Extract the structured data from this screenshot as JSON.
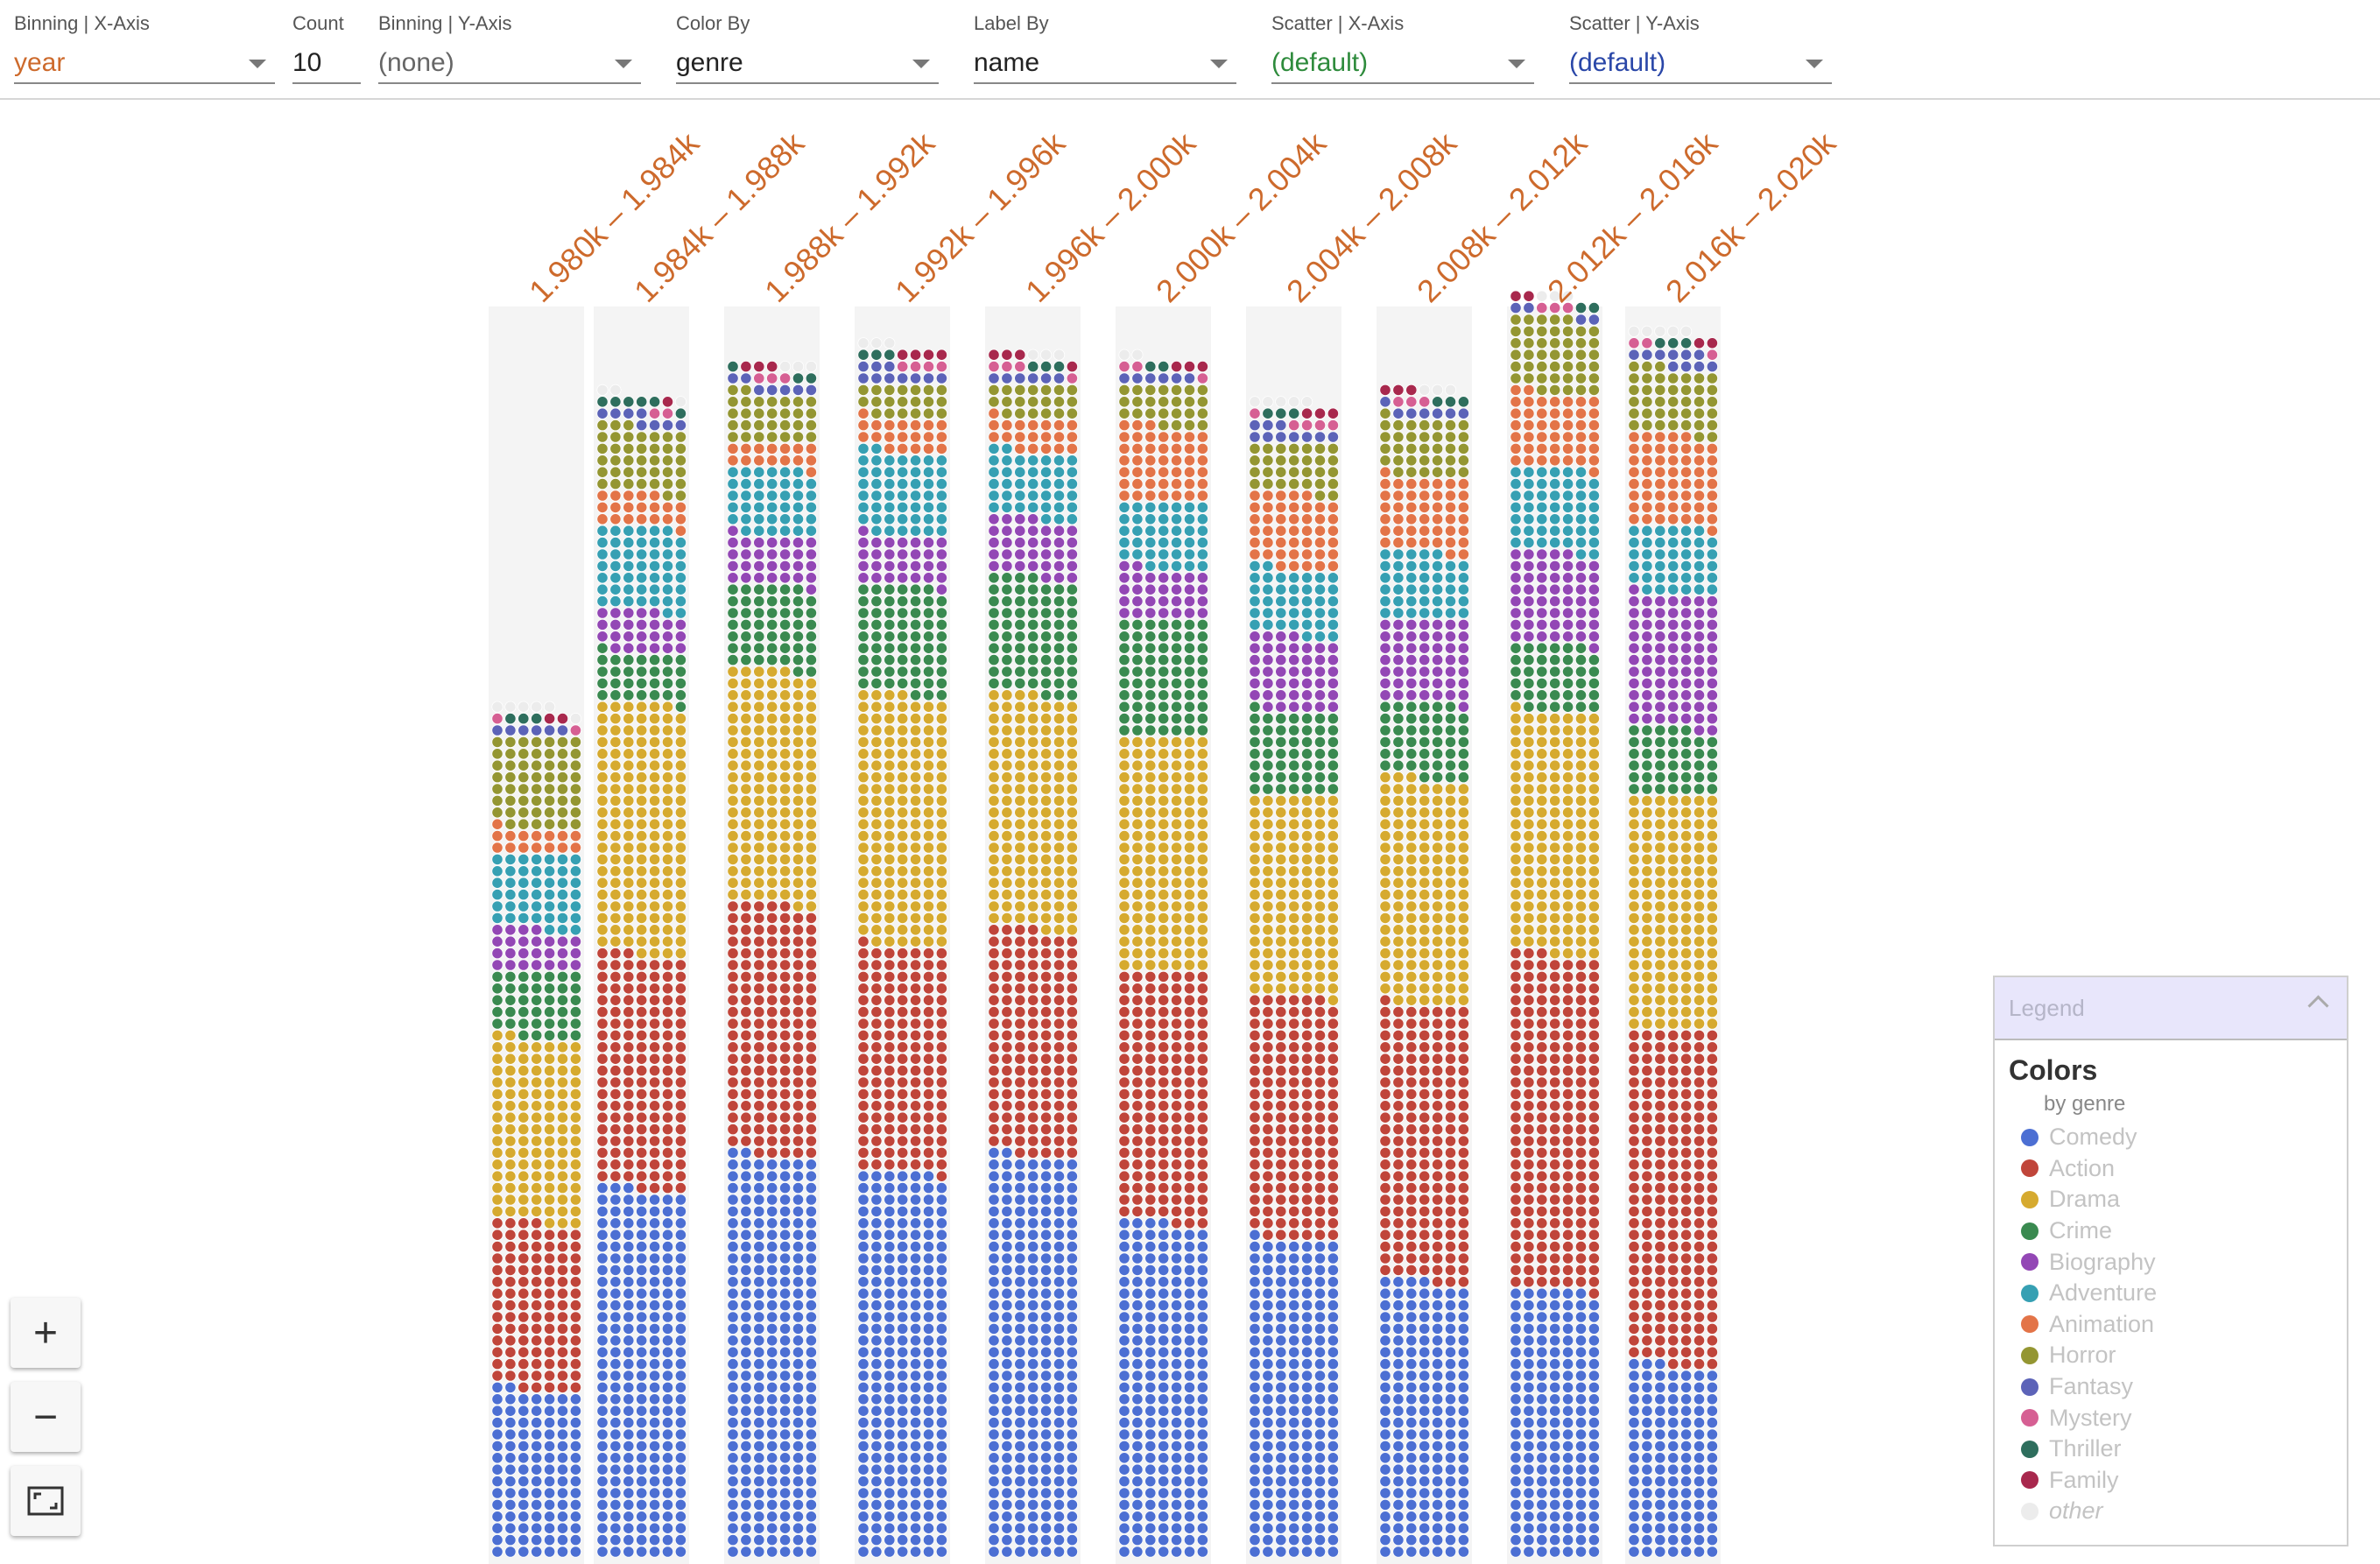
{
  "controls": [
    {
      "label": "Binning | X-Axis",
      "value": "year",
      "color": "#cd6a2c",
      "dropdown": true
    },
    {
      "label": "Count",
      "value": "10",
      "color": "#222222",
      "dropdown": false
    },
    {
      "label": "Binning | Y-Axis",
      "value": "(none)",
      "color": "#666666",
      "dropdown": true
    },
    {
      "label": "Color By",
      "value": "genre",
      "color": "#222222",
      "dropdown": true
    },
    {
      "label": "Label By",
      "value": "name",
      "color": "#222222",
      "dropdown": true
    },
    {
      "label": "Scatter | X-Axis",
      "value": "(default)",
      "color": "#2e8b3c",
      "dropdown": true
    },
    {
      "label": "Scatter | Y-Axis",
      "value": "(default)",
      "color": "#2a47a8",
      "dropdown": true
    }
  ],
  "zoom": {
    "in_label": "+",
    "out_label": "−"
  },
  "legend": {
    "header": "Legend",
    "title": "Colors",
    "subtitle": "by genre",
    "items": [
      {
        "label": "Comedy",
        "color": "#4c6fd3"
      },
      {
        "label": "Action",
        "color": "#c0453a"
      },
      {
        "label": "Drama",
        "color": "#d6aa2f"
      },
      {
        "label": "Crime",
        "color": "#3a8a50"
      },
      {
        "label": "Biography",
        "color": "#9347b5"
      },
      {
        "label": "Adventure",
        "color": "#36a0b3"
      },
      {
        "label": "Animation",
        "color": "#e37448"
      },
      {
        "label": "Horror",
        "color": "#949632"
      },
      {
        "label": "Fantasy",
        "color": "#5c63b8"
      },
      {
        "label": "Mystery",
        "color": "#d65f93"
      },
      {
        "label": "Thriller",
        "color": "#2e6e5d"
      },
      {
        "label": "Family",
        "color": "#a8284d"
      },
      {
        "label": "other",
        "color": "#ececec",
        "italic": true
      }
    ]
  },
  "chart_data": {
    "type": "bar",
    "grouping": "stacked unit dots, one dot per movie, colored by genre",
    "x_binning": "year",
    "categories": [
      "1.980k – 1.984k",
      "1.984k – 1.988k",
      "1.988k – 1.992k",
      "1.992k – 1.996k",
      "1.996k – 2.000k",
      "2.000k – 2.004k",
      "2.004k – 2.008k",
      "2.008k – 2.012k",
      "2.012k – 2.016k",
      "2.016k – 2.020k"
    ],
    "series": [
      {
        "name": "Comedy",
        "values": [
          100,
          220,
          240,
          230,
          240,
          200,
          190,
          165,
          160,
          115
        ]
      },
      {
        "name": "Action",
        "values": [
          100,
          140,
          150,
          135,
          135,
          150,
          145,
          165,
          200,
          200
        ]
      },
      {
        "name": "Drama",
        "values": [
          110,
          150,
          140,
          150,
          140,
          140,
          120,
          135,
          145,
          140
        ]
      },
      {
        "name": "Crime",
        "values": [
          40,
          30,
          50,
          65,
          70,
          70,
          50,
          45,
          40,
          40
        ]
      },
      {
        "name": "Biography",
        "values": [
          25,
          25,
          30,
          30,
          35,
          30,
          45,
          50,
          55,
          80
        ]
      },
      {
        "name": "Adventure",
        "values": [
          45,
          50,
          40,
          50,
          40,
          40,
          40,
          40,
          50,
          40
        ]
      },
      {
        "name": "Animation",
        "values": [
          15,
          20,
          15,
          20,
          20,
          45,
          45,
          45,
          45,
          55
        ]
      },
      {
        "name": "Horror",
        "values": [
          55,
          40,
          30,
          20,
          20,
          25,
          30,
          35,
          45,
          40
        ]
      },
      {
        "name": "Fantasy",
        "values": [
          6,
          8,
          7,
          10,
          6,
          6,
          10,
          7,
          4,
          10
        ]
      },
      {
        "name": "Mystery",
        "values": [
          2,
          2,
          3,
          4,
          4,
          3,
          5,
          3,
          3,
          3
        ]
      },
      {
        "name": "Thriller",
        "values": [
          3,
          6,
          3,
          3,
          3,
          2,
          3,
          3,
          2,
          3
        ]
      },
      {
        "name": "Family",
        "values": [
          2,
          1,
          3,
          4,
          4,
          3,
          3,
          3,
          2,
          2
        ]
      },
      {
        "name": "other",
        "values": [
          6,
          3,
          3,
          3,
          3,
          2,
          5,
          3,
          3,
          5
        ]
      }
    ]
  }
}
